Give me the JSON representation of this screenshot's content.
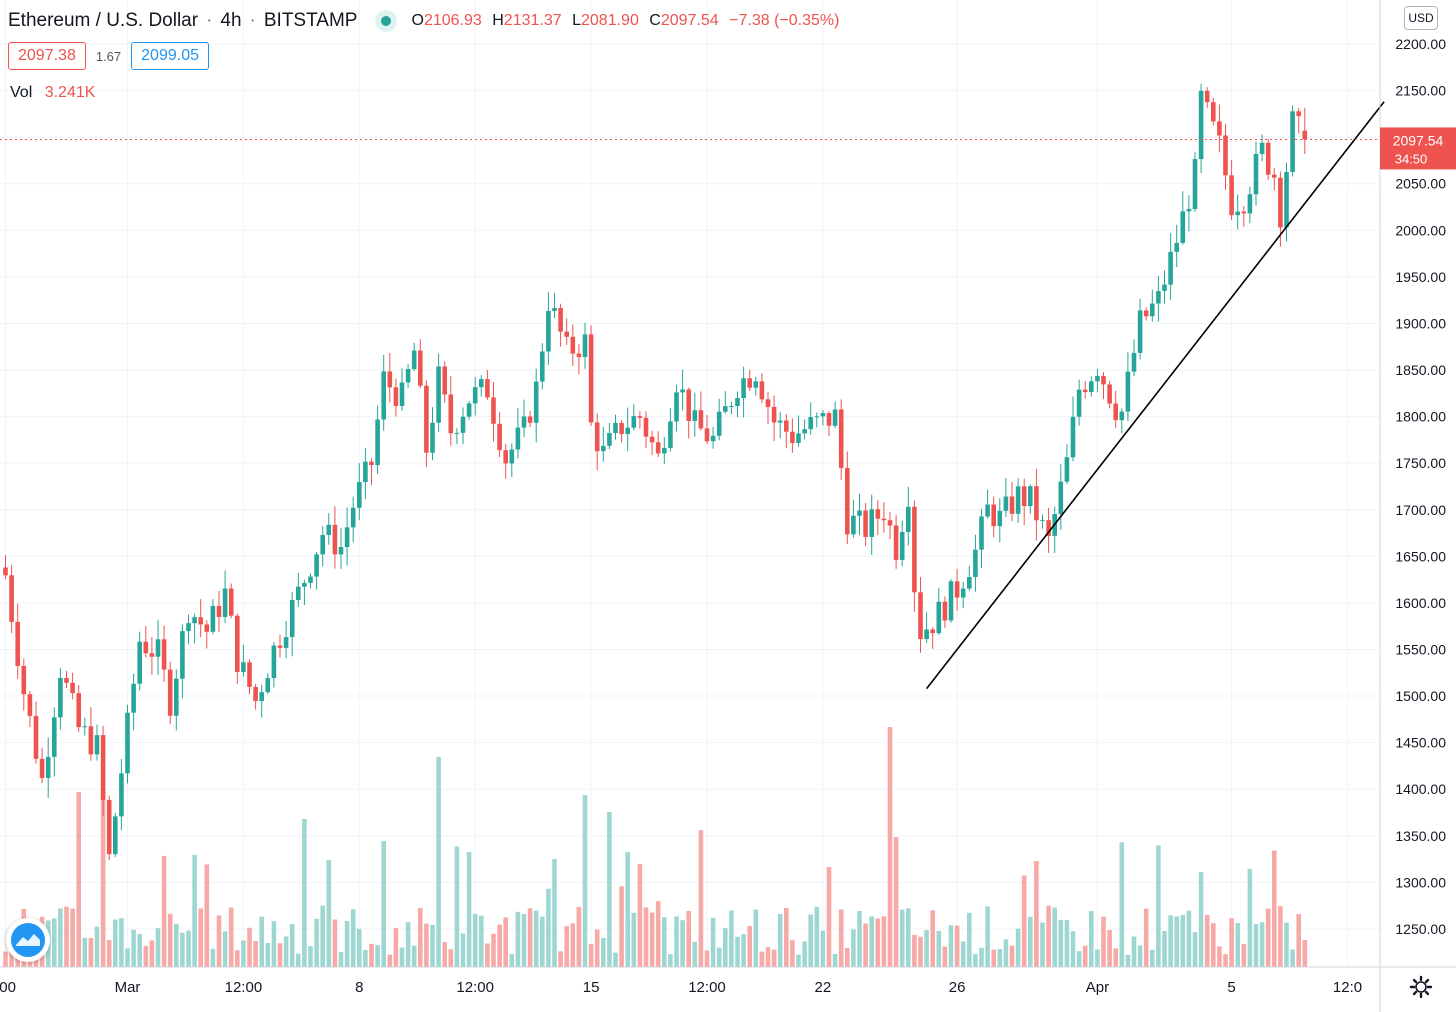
{
  "header": {
    "symbol": "Ethereum / U.S. Dollar",
    "interval": "4h",
    "exchange": "BITSTAMP",
    "open_label": "O",
    "open": "2106.93",
    "high_label": "H",
    "high": "2131.37",
    "low_label": "L",
    "low": "2081.90",
    "close_label": "C",
    "close": "2097.54",
    "change": "−7.38 (−0.35%)"
  },
  "quote": {
    "bid": "2097.38",
    "spread": "1.67",
    "ask": "2099.05"
  },
  "volume": {
    "label": "Vol",
    "value": "3.241K"
  },
  "currency_button": "USD",
  "last_price": {
    "value": "2097.54",
    "countdown": "34:50"
  },
  "colors": {
    "up": "#26a69a",
    "down": "#ef5350",
    "vol_up": "#9ed7d2",
    "vol_down": "#f6a9a7",
    "grid": "#f0f3fa",
    "trendline": "#000000"
  },
  "icons": [
    "tradingview-logo-icon",
    "gear-icon",
    "status-dot-icon"
  ],
  "chart_data": {
    "type": "candlestick",
    "interval": "4h",
    "ylim": [
      1130,
      2230
    ],
    "y_ticks": [
      "2200.00",
      "2150.00",
      "2100.00",
      "2050.00",
      "2000.00",
      "1950.00",
      "1900.00",
      "1850.00",
      "1800.00",
      "1750.00",
      "1700.00",
      "1650.00",
      "1600.00",
      "1550.00",
      "1500.00",
      "1450.00",
      "1400.00",
      "1350.00",
      "1300.00",
      "1250.00"
    ],
    "x_ticks": [
      {
        "label": ":00",
        "bar": 0
      },
      {
        "label": "Mar",
        "bar": 20
      },
      {
        "label": "12:00",
        "bar": 39
      },
      {
        "label": "8",
        "bar": 58
      },
      {
        "label": "12:00",
        "bar": 77
      },
      {
        "label": "15",
        "bar": 96
      },
      {
        "label": "12:00",
        "bar": 115
      },
      {
        "label": "22",
        "bar": 134
      },
      {
        "label": "26",
        "bar": 156
      },
      {
        "label": "Apr",
        "bar": 179
      },
      {
        "label": "5",
        "bar": 201
      },
      {
        "label": "12:0",
        "bar": 220
      }
    ],
    "anchors": [
      [
        0,
        1630
      ],
      [
        3,
        1505
      ],
      [
        6,
        1410
      ],
      [
        9,
        1530
      ],
      [
        12,
        1465
      ],
      [
        15,
        1445
      ],
      [
        17,
        1325
      ],
      [
        19,
        1420
      ],
      [
        22,
        1560
      ],
      [
        25,
        1545
      ],
      [
        27,
        1495
      ],
      [
        30,
        1595
      ],
      [
        33,
        1570
      ],
      [
        36,
        1610
      ],
      [
        38,
        1540
      ],
      [
        41,
        1495
      ],
      [
        44,
        1550
      ],
      [
        48,
        1610
      ],
      [
        52,
        1675
      ],
      [
        55,
        1660
      ],
      [
        57,
        1705
      ],
      [
        60,
        1750
      ],
      [
        62,
        1840
      ],
      [
        65,
        1820
      ],
      [
        67,
        1870
      ],
      [
        69,
        1765
      ],
      [
        71,
        1840
      ],
      [
        73,
        1785
      ],
      [
        76,
        1820
      ],
      [
        79,
        1830
      ],
      [
        82,
        1755
      ],
      [
        85,
        1785
      ],
      [
        87,
        1830
      ],
      [
        89,
        1925
      ],
      [
        92,
        1870
      ],
      [
        95,
        1880
      ],
      [
        96,
        1790
      ],
      [
        98,
        1760
      ],
      [
        101,
        1790
      ],
      [
        104,
        1800
      ],
      [
        107,
        1755
      ],
      [
        110,
        1840
      ],
      [
        113,
        1790
      ],
      [
        116,
        1775
      ],
      [
        120,
        1835
      ],
      [
        123,
        1850
      ],
      [
        126,
        1795
      ],
      [
        129,
        1780
      ],
      [
        132,
        1790
      ],
      [
        136,
        1800
      ],
      [
        138,
        1690
      ],
      [
        141,
        1680
      ],
      [
        144,
        1700
      ],
      [
        146,
        1660
      ],
      [
        148,
        1720
      ],
      [
        149,
        1620
      ],
      [
        150,
        1570
      ],
      [
        152,
        1580
      ],
      [
        156,
        1615
      ],
      [
        159,
        1655
      ],
      [
        161,
        1700
      ],
      [
        163,
        1690
      ],
      [
        166,
        1715
      ],
      [
        168,
        1710
      ],
      [
        171,
        1665
      ],
      [
        174,
        1750
      ],
      [
        176,
        1830
      ],
      [
        179,
        1855
      ],
      [
        182,
        1810
      ],
      [
        183,
        1805
      ],
      [
        186,
        1900
      ],
      [
        189,
        1925
      ],
      [
        192,
        1990
      ],
      [
        195,
        2060
      ],
      [
        196,
        2140
      ],
      [
        199,
        2090
      ],
      [
        201,
        2030
      ],
      [
        203,
        2035
      ],
      [
        206,
        2085
      ],
      [
        208,
        2060
      ],
      [
        209,
        2020
      ],
      [
        211,
        2115
      ],
      [
        213,
        2098
      ]
    ],
    "last": {
      "open": 2106.93,
      "high": 2131.37,
      "low": 2081.9,
      "close": 2097.54
    },
    "last_price": 2097.54,
    "trendline": {
      "from": {
        "bar": 151,
        "price": 1508
      },
      "to": {
        "bar": 226,
        "price": 2138
      }
    }
  }
}
